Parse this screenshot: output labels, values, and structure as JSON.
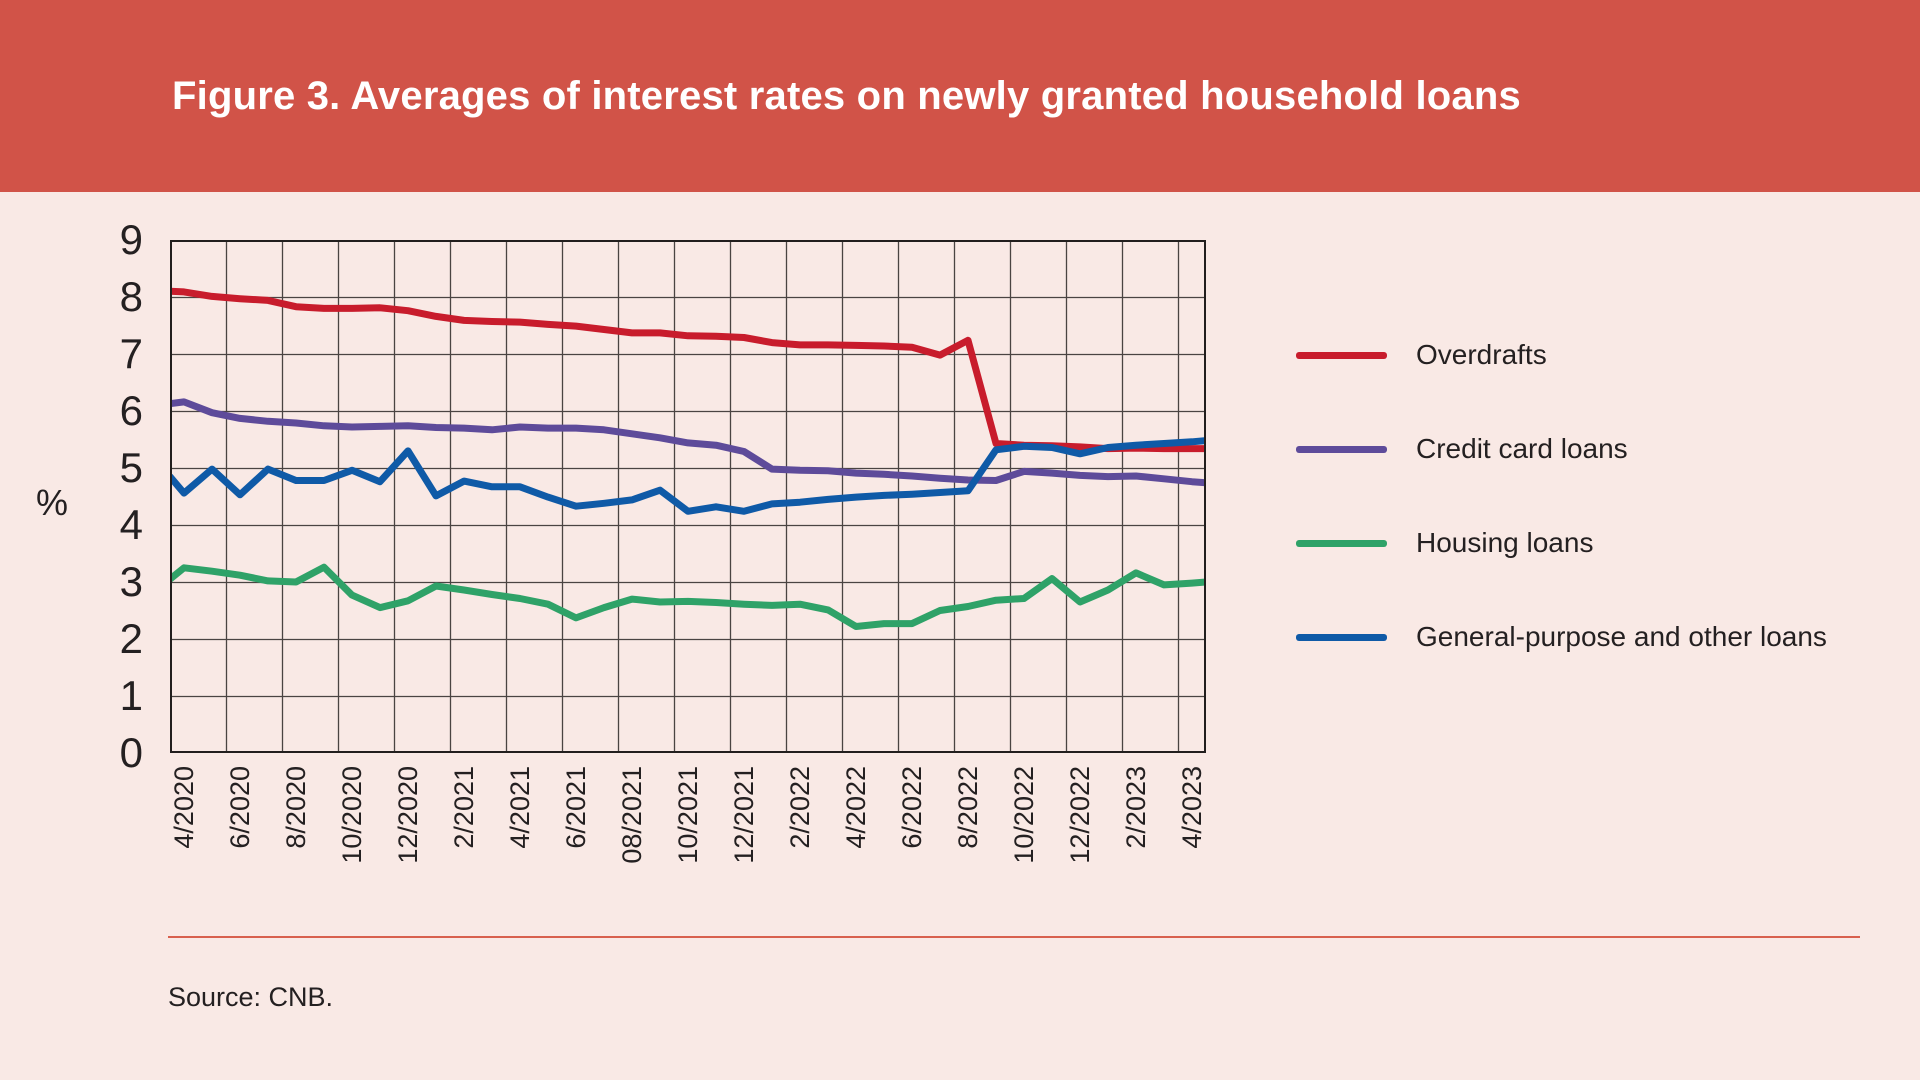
{
  "header": {
    "title": "Figure 3. Averages of interest rates on newly granted household loans",
    "background_color": "#d15348",
    "title_color": "#ffffff"
  },
  "source_line": "Source: CNB.",
  "colors": {
    "page_background": "#f9e9e5",
    "grid_line": "#4a4442",
    "plot_border": "#221e1d",
    "divider": "#d8604e",
    "text": "#242021"
  },
  "chart_data": {
    "type": "line",
    "title": "Figure 3. Averages of interest rates on newly granted household loans",
    "xlabel": "",
    "ylabel": "%",
    "ylim": [
      0,
      9
    ],
    "yticks": [
      0,
      1,
      2,
      3,
      4,
      5,
      6,
      7,
      8,
      9
    ],
    "grid": true,
    "legend_position": "right",
    "x_tick_labels": [
      "4/2020",
      "6/2020",
      "8/2020",
      "10/2020",
      "12/2020",
      "2/2021",
      "4/2021",
      "6/2021",
      "08/2021",
      "10/2021",
      "12/2021",
      "2/2022",
      "4/2022",
      "6/2022",
      "8/2022",
      "10/2022",
      "12/2022",
      "2/2023",
      "4/2023"
    ],
    "months": [
      "4/2020",
      "5/2020",
      "6/2020",
      "7/2020",
      "8/2020",
      "9/2020",
      "10/2020",
      "11/2020",
      "12/2020",
      "1/2021",
      "2/2021",
      "3/2021",
      "4/2021",
      "5/2021",
      "6/2021",
      "7/2021",
      "8/2021",
      "9/2021",
      "10/2021",
      "11/2021",
      "12/2021",
      "1/2022",
      "2/2022",
      "3/2022",
      "4/2022",
      "5/2022",
      "6/2022",
      "7/2022",
      "8/2022",
      "9/2022",
      "10/2022",
      "11/2022",
      "12/2022",
      "1/2023",
      "2/2023",
      "3/2023",
      "4/2023"
    ],
    "series": [
      {
        "name": "Overdrafts",
        "color": "#c81c2c",
        "edge_left": 8.1,
        "values": [
          8.09,
          8.01,
          7.97,
          7.94,
          7.83,
          7.8,
          7.8,
          7.81,
          7.76,
          7.66,
          7.59,
          7.57,
          7.56,
          7.52,
          7.49,
          7.43,
          7.37,
          7.37,
          7.32,
          7.31,
          7.29,
          7.2,
          7.16,
          7.16,
          7.15,
          7.14,
          7.12,
          6.98,
          7.24,
          5.43,
          5.4,
          5.39,
          5.37,
          5.34,
          5.35,
          5.34,
          5.34
        ],
        "edge_right": 5.34
      },
      {
        "name": "Credit card loans",
        "color": "#5e4b9a",
        "edge_left": 6.13,
        "values": [
          6.16,
          5.97,
          5.87,
          5.82,
          5.79,
          5.74,
          5.72,
          5.73,
          5.74,
          5.71,
          5.7,
          5.67,
          5.72,
          5.7,
          5.7,
          5.67,
          5.6,
          5.53,
          5.44,
          5.4,
          5.29,
          4.98,
          4.96,
          4.95,
          4.91,
          4.89,
          4.86,
          4.82,
          4.79,
          4.78,
          4.94,
          4.91,
          4.87,
          4.85,
          4.86,
          4.81,
          4.76
        ],
        "edge_right": 4.74
      },
      {
        "name": "Housing loans",
        "color": "#2fa268",
        "edge_left": 3.05,
        "values": [
          3.25,
          3.19,
          3.12,
          3.02,
          3.0,
          3.26,
          2.77,
          2.55,
          2.67,
          2.93,
          2.86,
          2.78,
          2.71,
          2.61,
          2.37,
          2.55,
          2.7,
          2.65,
          2.66,
          2.64,
          2.61,
          2.59,
          2.61,
          2.51,
          2.22,
          2.27,
          2.27,
          2.5,
          2.57,
          2.68,
          2.71,
          3.06,
          2.65,
          2.86,
          3.16,
          2.95,
          2.98
        ],
        "edge_right": 3.0
      },
      {
        "name": "General-purpose and other loans",
        "color": "#0f5aa7",
        "edge_left": 4.85,
        "values": [
          4.56,
          4.98,
          4.53,
          4.98,
          4.78,
          4.78,
          4.96,
          4.76,
          5.3,
          4.51,
          4.77,
          4.67,
          4.67,
          4.49,
          4.33,
          4.38,
          4.44,
          4.61,
          4.24,
          4.32,
          4.24,
          4.37,
          4.4,
          4.45,
          4.49,
          4.52,
          4.54,
          4.57,
          4.6,
          5.32,
          5.38,
          5.36,
          5.25,
          5.36,
          5.4,
          5.43,
          5.46
        ],
        "edge_right": 5.48
      }
    ]
  }
}
